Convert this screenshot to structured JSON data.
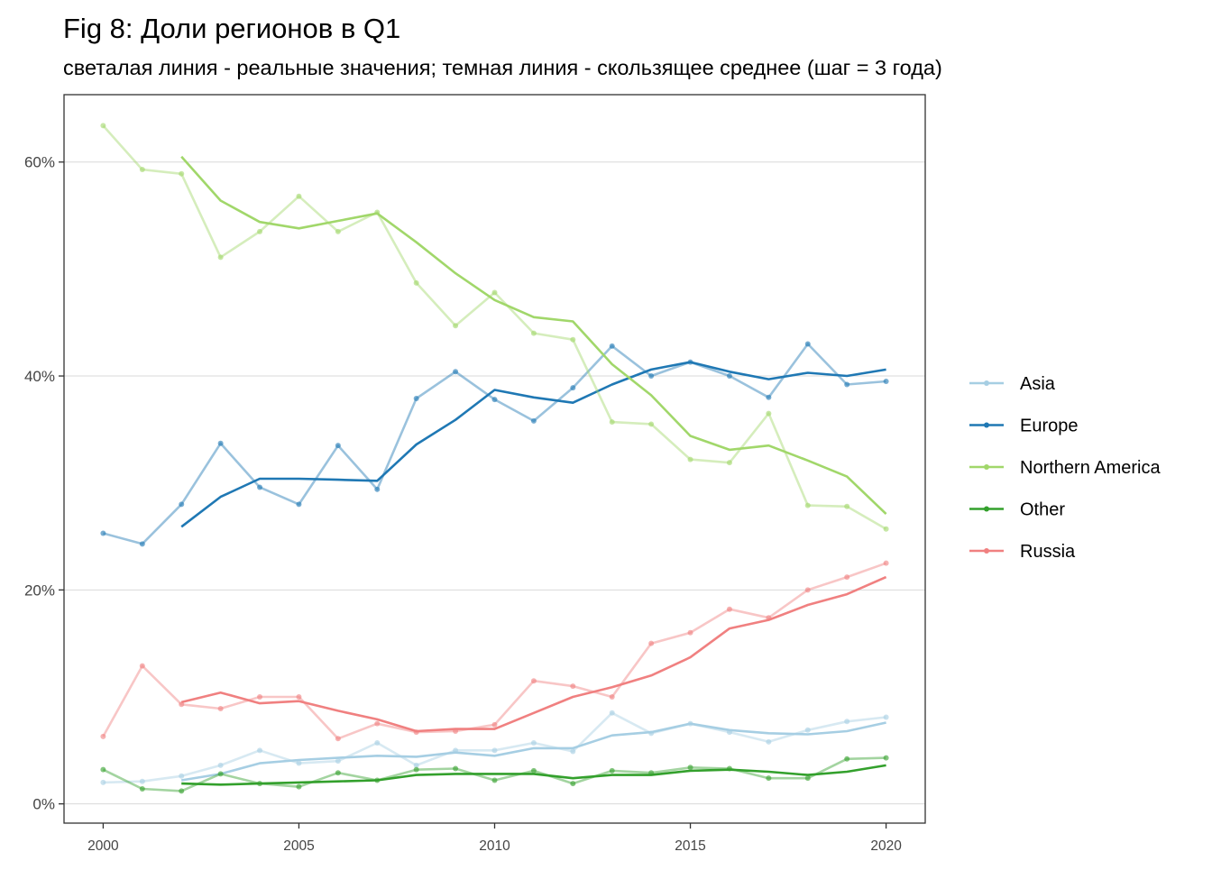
{
  "chart_data": {
    "type": "line",
    "title": "Fig 8: Доли регионов в Q1",
    "subtitle": "светалая линия - реальные значения; темная линия - скользящее среднее (шаг = 3 года)",
    "xlabel": "",
    "ylabel": "",
    "x": [
      2000,
      2001,
      2002,
      2003,
      2004,
      2005,
      2006,
      2007,
      2008,
      2009,
      2010,
      2011,
      2012,
      2013,
      2014,
      2015,
      2016,
      2017,
      2018,
      2019,
      2020
    ],
    "xlim": [
      1999,
      2021
    ],
    "ylim": [
      -1.8,
      66.3
    ],
    "x_ticks": [
      2000,
      2005,
      2010,
      2015,
      2020
    ],
    "x_tick_labels": [
      "2000",
      "2005",
      "2010",
      "2015",
      "2020"
    ],
    "y_ticks": [
      0,
      20,
      40,
      60
    ],
    "y_tick_labels": [
      "0%",
      "20%",
      "40%",
      "60%"
    ],
    "grid": true,
    "legend_position": "right",
    "series": [
      {
        "name": "Asia",
        "color": "#A6CEE3",
        "actual": [
          2.0,
          2.1,
          2.6,
          3.6,
          5.0,
          3.8,
          4.0,
          5.7,
          3.6,
          5.0,
          5.0,
          5.7,
          4.9,
          8.5,
          6.6,
          7.5,
          6.7,
          5.8,
          6.9,
          7.7,
          8.1
        ],
        "moving_avg": [
          null,
          null,
          2.2,
          2.8,
          3.8,
          4.1,
          4.3,
          4.5,
          4.4,
          4.8,
          4.5,
          5.2,
          5.2,
          6.4,
          6.7,
          7.5,
          6.9,
          6.6,
          6.5,
          6.8,
          7.6
        ]
      },
      {
        "name": "Europe",
        "color": "#1F78B4",
        "actual": [
          25.3,
          24.3,
          28.0,
          33.7,
          29.6,
          28.0,
          33.5,
          29.4,
          37.9,
          40.4,
          37.8,
          35.8,
          38.9,
          42.8,
          40.0,
          41.3,
          40.0,
          38.0,
          43.0,
          39.2,
          39.5
        ],
        "moving_avg": [
          null,
          null,
          25.9,
          28.7,
          30.4,
          30.4,
          30.3,
          30.2,
          33.6,
          35.9,
          38.7,
          38.0,
          37.5,
          39.2,
          40.6,
          41.3,
          40.4,
          39.7,
          40.3,
          40.0,
          40.6
        ]
      },
      {
        "name": "Northern America",
        "color": "#A1D76A",
        "actual": [
          63.4,
          59.3,
          58.9,
          51.1,
          53.5,
          56.8,
          53.5,
          55.3,
          48.7,
          44.7,
          47.8,
          44.0,
          43.4,
          35.7,
          35.5,
          32.2,
          31.9,
          36.5,
          27.9,
          27.8,
          25.7
        ],
        "moving_avg": [
          null,
          null,
          60.5,
          56.4,
          54.4,
          53.8,
          54.5,
          55.2,
          52.5,
          49.6,
          47.1,
          45.5,
          45.1,
          41.1,
          38.2,
          34.4,
          33.1,
          33.5,
          32.1,
          30.6,
          27.1
        ]
      },
      {
        "name": "Other",
        "color": "#33A02C",
        "actual": [
          3.2,
          1.4,
          1.2,
          2.8,
          1.9,
          1.6,
          2.9,
          2.2,
          3.2,
          3.3,
          2.2,
          3.1,
          1.9,
          3.1,
          2.9,
          3.4,
          3.3,
          2.4,
          2.4,
          4.2,
          4.3
        ],
        "moving_avg": [
          null,
          null,
          1.9,
          1.8,
          1.9,
          2.0,
          2.1,
          2.2,
          2.7,
          2.8,
          2.8,
          2.8,
          2.4,
          2.7,
          2.7,
          3.1,
          3.2,
          3.0,
          2.7,
          3.0,
          3.6
        ]
      },
      {
        "name": "Russia",
        "color": "#F08080",
        "actual": [
          6.3,
          12.9,
          9.3,
          8.9,
          10.0,
          10.0,
          6.1,
          7.5,
          6.7,
          6.8,
          7.4,
          11.5,
          11.0,
          10.0,
          15.0,
          16.0,
          18.2,
          17.4,
          20.0,
          21.2,
          22.5
        ],
        "moving_avg": [
          null,
          null,
          9.5,
          10.4,
          9.4,
          9.6,
          8.7,
          7.9,
          6.8,
          7.0,
          7.0,
          8.5,
          10.0,
          10.9,
          12.0,
          13.7,
          16.4,
          17.2,
          18.6,
          19.6,
          21.2
        ]
      }
    ]
  }
}
